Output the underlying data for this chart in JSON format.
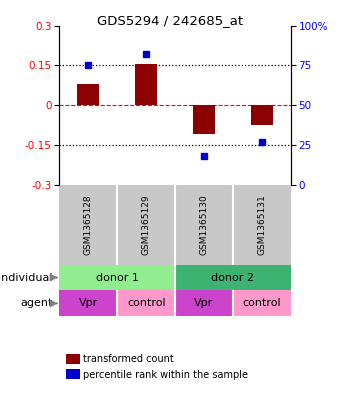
{
  "title": "GDS5294 / 242685_at",
  "samples": [
    "GSM1365128",
    "GSM1365129",
    "GSM1365130",
    "GSM1365131"
  ],
  "red_values": [
    0.08,
    0.155,
    -0.11,
    -0.075
  ],
  "blue_values_pct": [
    75,
    82,
    18,
    27
  ],
  "ylim_red": [
    -0.3,
    0.3
  ],
  "ylim_blue": [
    0,
    100
  ],
  "yticks_red": [
    -0.3,
    -0.15,
    0,
    0.15,
    0.3
  ],
  "yticks_blue": [
    0,
    25,
    50,
    75,
    100
  ],
  "hlines_red": [
    -0.15,
    0,
    0.15
  ],
  "hline_styles": [
    "dotted",
    "dashed",
    "dotted"
  ],
  "hline_colors": [
    "black",
    "red",
    "black"
  ],
  "individuals": [
    {
      "label": "donor 1",
      "span": [
        0,
        2
      ],
      "color": "#90EE90"
    },
    {
      "label": "donor 2",
      "span": [
        2,
        4
      ],
      "color": "#3CB371"
    }
  ],
  "agents": [
    {
      "label": "Vpr",
      "span": [
        0,
        1
      ],
      "color": "#CC44CC"
    },
    {
      "label": "control",
      "span": [
        1,
        2
      ],
      "color": "#FF99CC"
    },
    {
      "label": "Vpr",
      "span": [
        2,
        3
      ],
      "color": "#CC44CC"
    },
    {
      "label": "control",
      "span": [
        3,
        4
      ],
      "color": "#FF99CC"
    }
  ],
  "bar_color": "#8B0000",
  "dot_color": "#0000CC",
  "sample_box_color": "#C8C8C8",
  "legend_red_label": "transformed count",
  "legend_blue_label": "percentile rank within the sample",
  "row_labels": [
    "individual",
    "agent"
  ],
  "arrow_color": "#808080",
  "bg_color": "#FFFFFF"
}
